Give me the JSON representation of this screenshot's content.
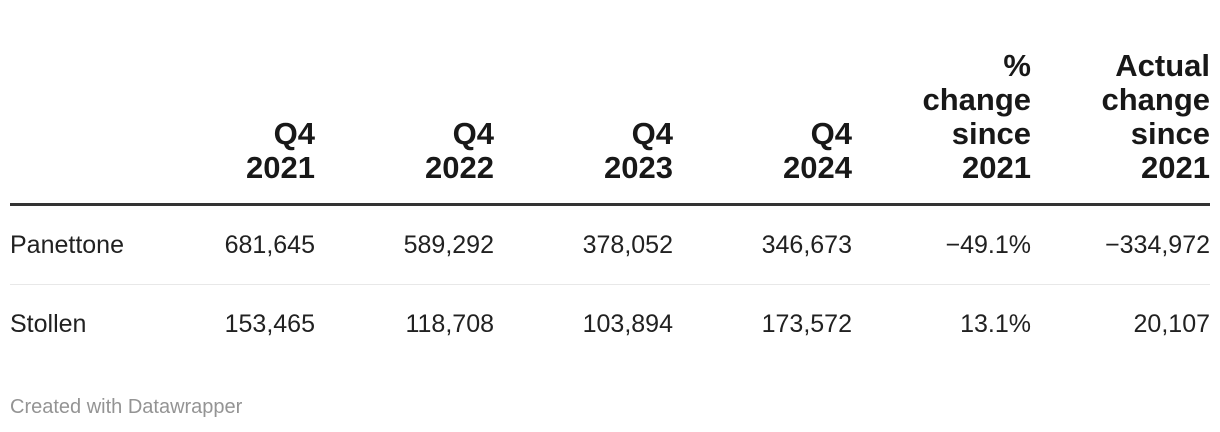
{
  "colors": {
    "background": "#ffffff",
    "header_text": "#181818",
    "body_text": "#212121",
    "thick_rule": "#333333",
    "row_divider": "#e8e8e8",
    "attribution_text": "#949494"
  },
  "table": {
    "headers": [
      "",
      "Q4\n2021",
      "Q4\n2022",
      "Q4\n2023",
      "Q4\n2024",
      "%\nchange\nsince\n2021",
      "Actual\nchange\nsince\n2021"
    ],
    "rows": [
      {
        "label": "Panettone",
        "values": [
          "681,645",
          "589,292",
          "378,052",
          "346,673",
          "−49.1%",
          "−334,972"
        ]
      },
      {
        "label": "Stollen",
        "values": [
          "153,465",
          "118,708",
          "103,894",
          "173,572",
          "13.1%",
          "20,107"
        ]
      }
    ]
  },
  "footer": {
    "attribution": "Created with Datawrapper"
  },
  "chart_data": {
    "type": "table",
    "title": "",
    "columns": [
      "",
      "Q4 2021",
      "Q4 2022",
      "Q4 2023",
      "Q4 2024",
      "% change since 2021",
      "Actual change since 2021"
    ],
    "rows": [
      {
        "label": "Panettone",
        "q4_2021": 681645,
        "q4_2022": 589292,
        "q4_2023": 378052,
        "q4_2024": 346673,
        "pct_change_since_2021": -49.1,
        "actual_change_since_2021": -334972
      },
      {
        "label": "Stollen",
        "q4_2021": 153465,
        "q4_2022": 118708,
        "q4_2023": 103894,
        "q4_2024": 173572,
        "pct_change_since_2021": 13.1,
        "actual_change_since_2021": 20107
      }
    ],
    "layout_hints": {
      "numeric_alignment": "right",
      "header_rule": "thick",
      "row_divider": "hairline",
      "attribution": "Created with Datawrapper"
    }
  }
}
